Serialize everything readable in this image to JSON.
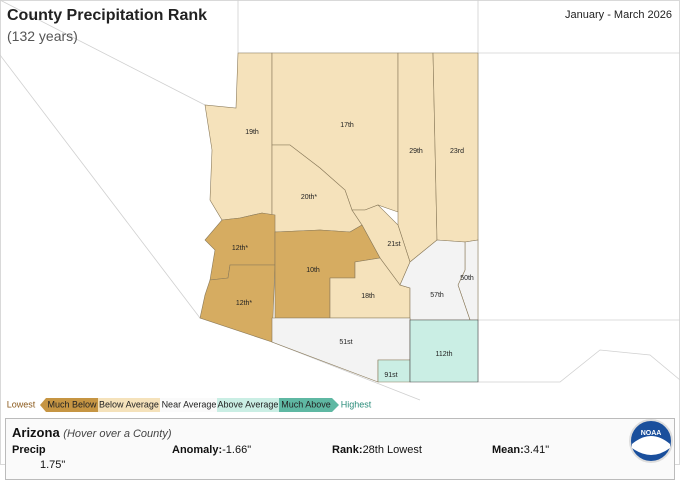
{
  "header": {
    "title": "County Precipitation Rank",
    "span": "(132 years)",
    "period": "January - March 2026"
  },
  "counties": [
    {
      "label": "19th"
    },
    {
      "label": "17th"
    },
    {
      "label": "29th"
    },
    {
      "label": "23rd"
    },
    {
      "label": "20th*"
    },
    {
      "label": "21st"
    },
    {
      "label": "12th*"
    },
    {
      "label": "12th*"
    },
    {
      "label": "10th"
    },
    {
      "label": "18th"
    },
    {
      "label": "50th"
    },
    {
      "label": "57th"
    },
    {
      "label": "51st"
    },
    {
      "label": "91st"
    },
    {
      "label": "112th"
    }
  ],
  "legend": {
    "low": "Lowest",
    "high": "Highest",
    "items": [
      "Much Below",
      "Below Average",
      "Near Average",
      "Above Average",
      "Much Above"
    ]
  },
  "panel": {
    "state": "Arizona",
    "hint": "(Hover over a County)",
    "row": "Precip",
    "anomaly": "Anomaly:",
    "anomaly_value": "-1.66\"",
    "rank": "Rank:",
    "rank_value": "28th Lowest",
    "mean": "Mean:",
    "mean_value": "3.41\"",
    "cut": "1.75\""
  },
  "logo": "NOAA"
}
